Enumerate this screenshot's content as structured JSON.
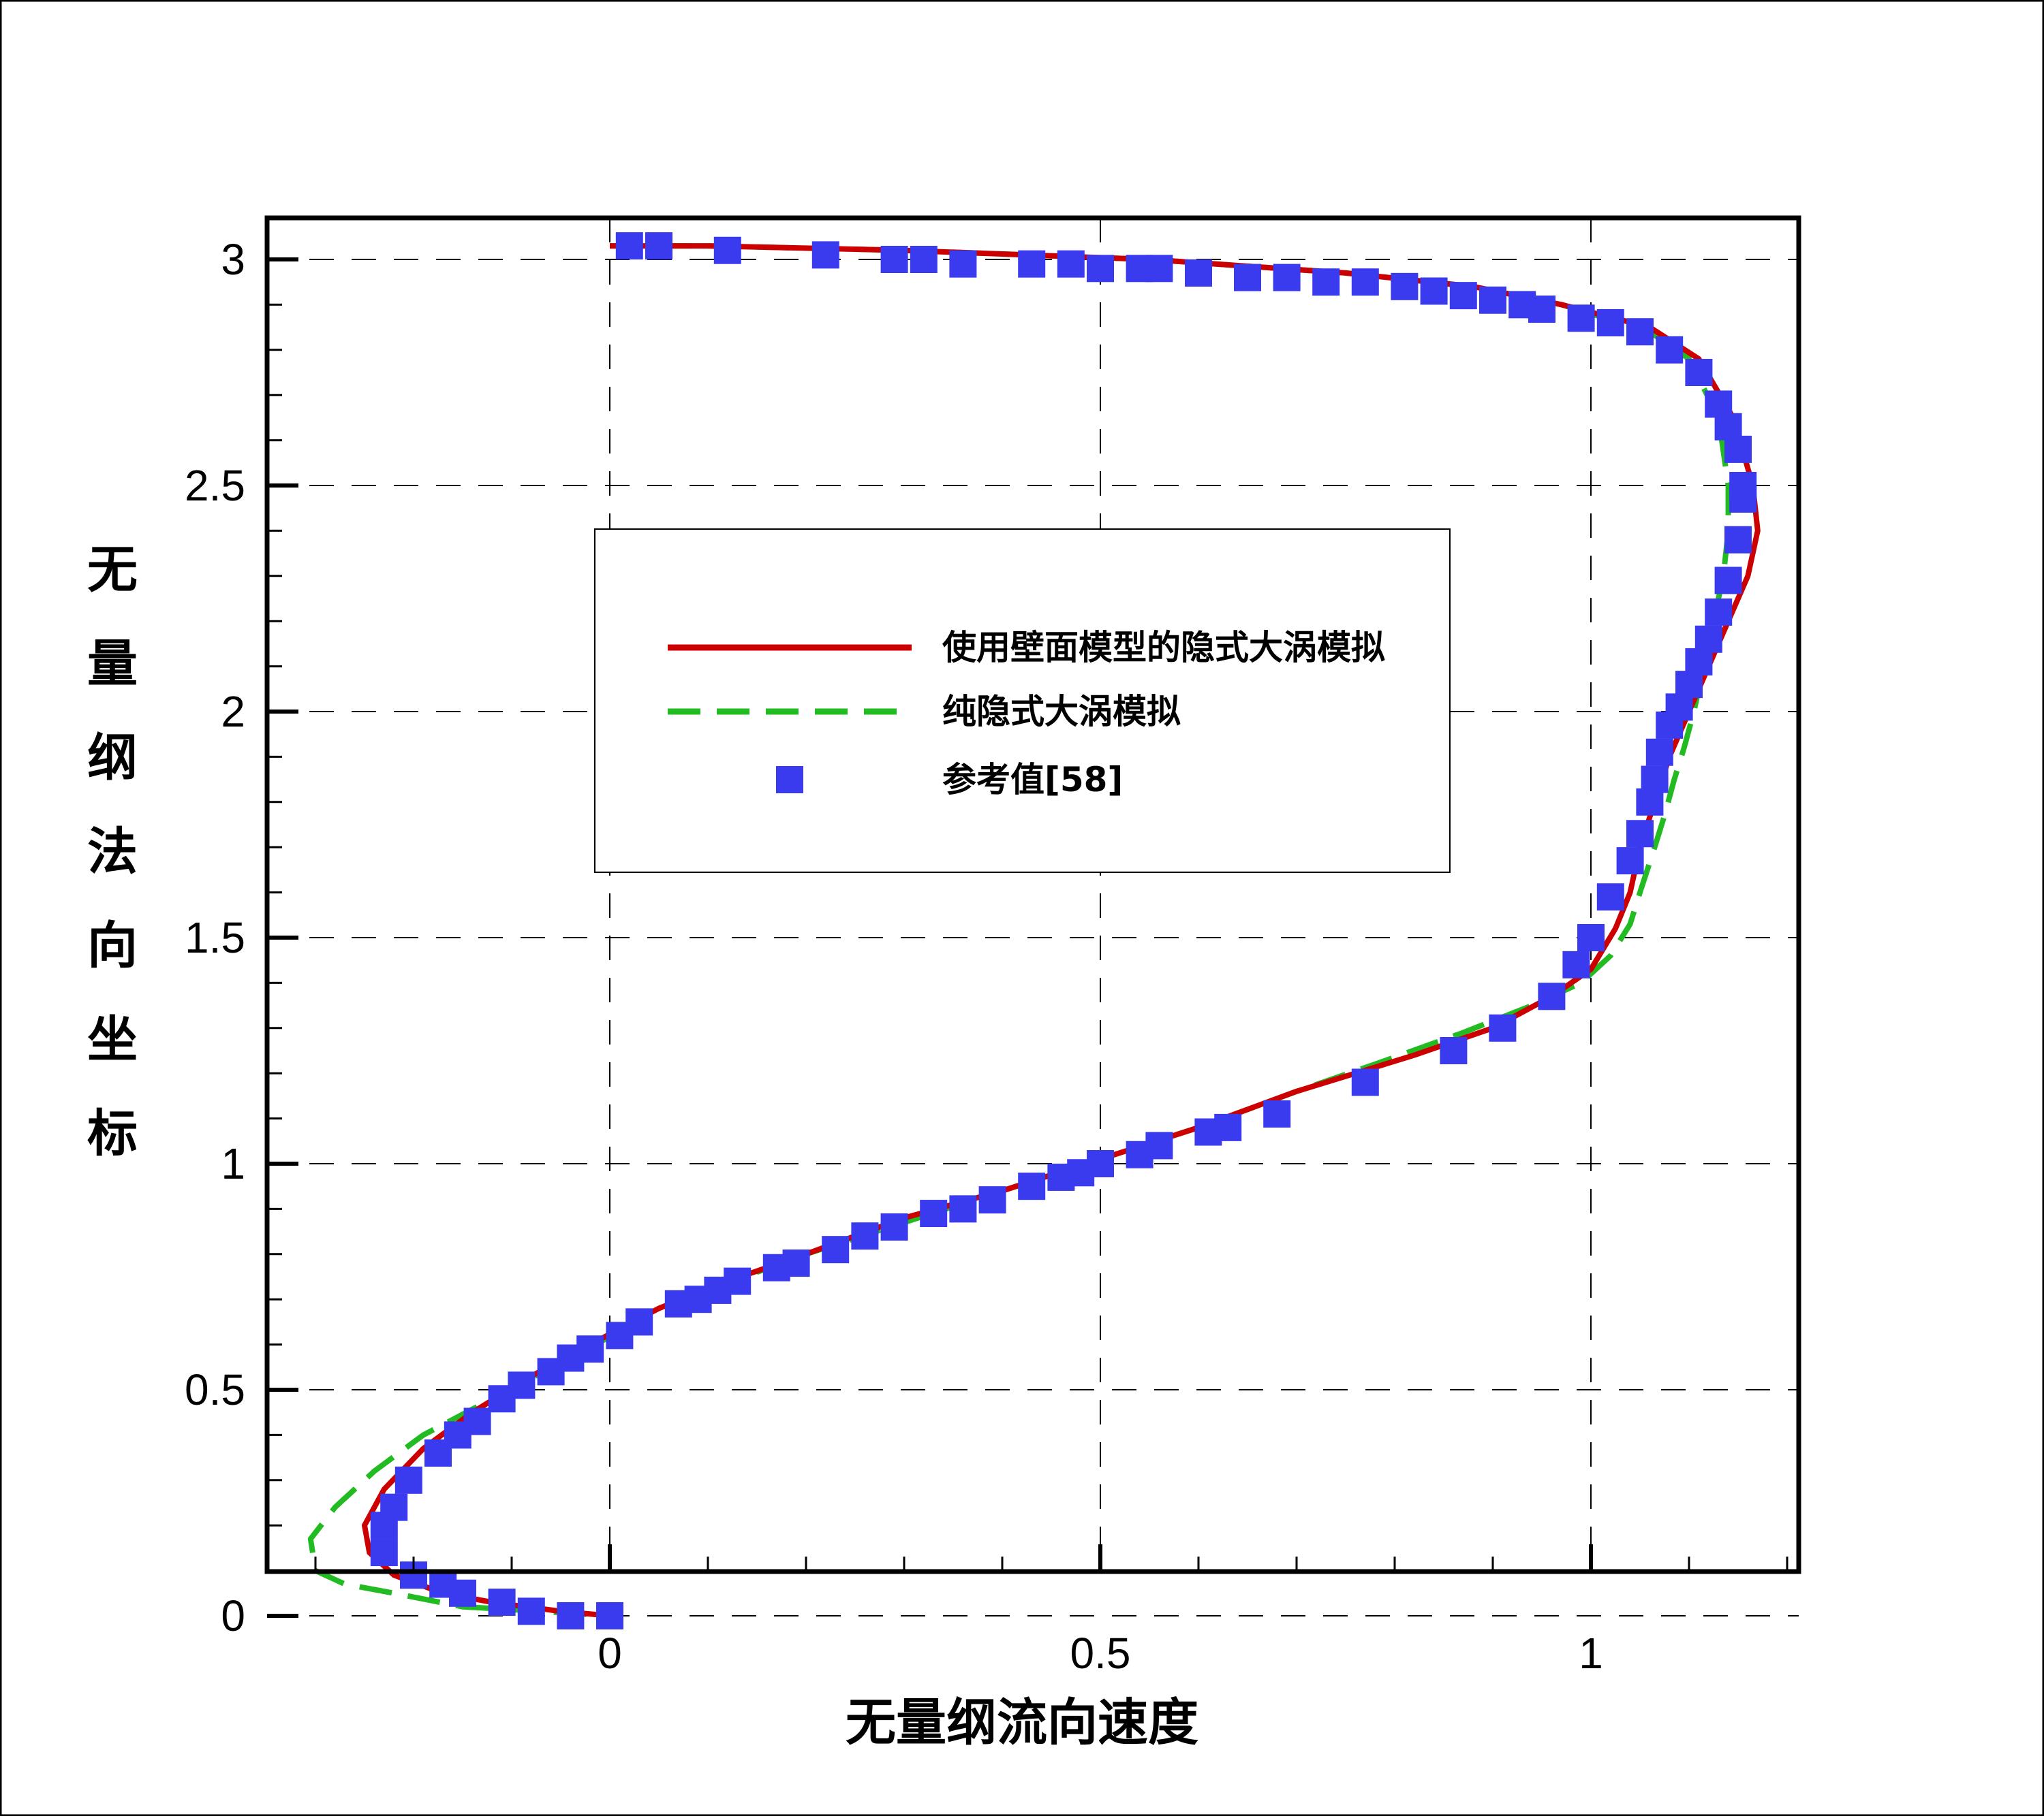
{
  "chart_data": {
    "type": "line",
    "xlabel": "无量纲流向速度",
    "ylabel": "无量纲法向坐标",
    "xlim": [
      -0.35,
      1.22
    ],
    "ylim": [
      0,
      3.1
    ],
    "x_ticks": [
      0,
      0.5,
      1
    ],
    "x_tick_labels": [
      "0",
      "0.5",
      "1"
    ],
    "y_ticks": [
      0,
      0.5,
      1,
      1.5,
      2,
      2.5,
      3
    ],
    "y_tick_labels": [
      "0",
      "0.5",
      "1",
      "1.5",
      "2",
      "2.5",
      "3"
    ],
    "grid": true,
    "legend_position": "center",
    "colors": {
      "wall_model": "#cc0000",
      "pure_iles": "#22bb22",
      "reference": "#3a3aee"
    },
    "series": [
      {
        "name": "使用壁面模型的隐式大涡模拟",
        "style": "solid",
        "points": [
          [
            0,
            3.03
          ],
          [
            0.1,
            3.03
          ],
          [
            0.3,
            3.02
          ],
          [
            0.55,
            3.0
          ],
          [
            0.75,
            2.97
          ],
          [
            0.88,
            2.94
          ],
          [
            0.97,
            2.9
          ],
          [
            1.06,
            2.85
          ],
          [
            1.11,
            2.78
          ],
          [
            1.145,
            2.65
          ],
          [
            1.165,
            2.5
          ],
          [
            1.17,
            2.4
          ],
          [
            1.16,
            2.3
          ],
          [
            1.14,
            2.2
          ],
          [
            1.12,
            2.1
          ],
          [
            1.1,
            2.0
          ],
          [
            1.08,
            1.9
          ],
          [
            1.065,
            1.8
          ],
          [
            1.05,
            1.7
          ],
          [
            1.04,
            1.6
          ],
          [
            1.025,
            1.52
          ],
          [
            1.0,
            1.43
          ],
          [
            0.96,
            1.37
          ],
          [
            0.9,
            1.3
          ],
          [
            0.82,
            1.24
          ],
          [
            0.7,
            1.16
          ],
          [
            0.6,
            1.08
          ],
          [
            0.5,
            1.01
          ],
          [
            0.4,
            0.94
          ],
          [
            0.3,
            0.88
          ],
          [
            0.2,
            0.8
          ],
          [
            0.12,
            0.74
          ],
          [
            0.05,
            0.68
          ],
          [
            -0.02,
            0.6
          ],
          [
            -0.08,
            0.53
          ],
          [
            -0.14,
            0.45
          ],
          [
            -0.19,
            0.37
          ],
          [
            -0.23,
            0.28
          ],
          [
            -0.25,
            0.2
          ],
          [
            -0.245,
            0.14
          ],
          [
            -0.22,
            0.09
          ],
          [
            -0.17,
            0.05
          ],
          [
            -0.12,
            0.03
          ],
          [
            -0.05,
            0.01
          ],
          [
            0,
            0
          ]
        ]
      },
      {
        "name": "纯隐式大涡模拟",
        "style": "dashed",
        "points": [
          [
            0,
            3.03
          ],
          [
            0.1,
            3.03
          ],
          [
            0.3,
            3.02
          ],
          [
            0.55,
            3.0
          ],
          [
            0.75,
            2.97
          ],
          [
            0.88,
            2.94
          ],
          [
            0.97,
            2.9
          ],
          [
            1.06,
            2.84
          ],
          [
            1.1,
            2.78
          ],
          [
            1.13,
            2.65
          ],
          [
            1.14,
            2.5
          ],
          [
            1.14,
            2.4
          ],
          [
            1.135,
            2.3
          ],
          [
            1.125,
            2.2
          ],
          [
            1.115,
            2.1
          ],
          [
            1.105,
            2.0
          ],
          [
            1.095,
            1.92
          ],
          [
            1.085,
            1.85
          ],
          [
            1.075,
            1.77
          ],
          [
            1.065,
            1.7
          ],
          [
            1.05,
            1.6
          ],
          [
            1.04,
            1.53
          ],
          [
            1.02,
            1.46
          ],
          [
            0.99,
            1.4
          ],
          [
            0.94,
            1.35
          ],
          [
            0.87,
            1.29
          ],
          [
            0.78,
            1.22
          ],
          [
            0.7,
            1.16
          ],
          [
            0.6,
            1.08
          ],
          [
            0.5,
            1.01
          ],
          [
            0.4,
            0.94
          ],
          [
            0.3,
            0.87
          ],
          [
            0.2,
            0.8
          ],
          [
            0.1,
            0.72
          ],
          [
            0.02,
            0.64
          ],
          [
            -0.05,
            0.56
          ],
          [
            -0.12,
            0.48
          ],
          [
            -0.19,
            0.4
          ],
          [
            -0.24,
            0.32
          ],
          [
            -0.28,
            0.24
          ],
          [
            -0.305,
            0.17
          ],
          [
            -0.3,
            0.1
          ],
          [
            -0.27,
            0.07
          ],
          [
            -0.22,
            0.05
          ],
          [
            -0.15,
            0.02
          ],
          [
            -0.07,
            0.01
          ],
          [
            0,
            0
          ]
        ]
      },
      {
        "name": "参考值[58]",
        "style": "markers",
        "points": [
          [
            0.02,
            3.03
          ],
          [
            0.05,
            3.03
          ],
          [
            0.12,
            3.02
          ],
          [
            0.22,
            3.01
          ],
          [
            0.29,
            3.0
          ],
          [
            0.32,
            3.0
          ],
          [
            0.36,
            2.99
          ],
          [
            0.43,
            2.99
          ],
          [
            0.47,
            2.99
          ],
          [
            0.5,
            2.98
          ],
          [
            0.54,
            2.98
          ],
          [
            0.56,
            2.98
          ],
          [
            0.6,
            2.97
          ],
          [
            0.65,
            2.96
          ],
          [
            0.69,
            2.96
          ],
          [
            0.73,
            2.95
          ],
          [
            0.77,
            2.95
          ],
          [
            0.81,
            2.94
          ],
          [
            0.84,
            2.93
          ],
          [
            0.87,
            2.92
          ],
          [
            0.9,
            2.91
          ],
          [
            0.93,
            2.9
          ],
          [
            0.95,
            2.89
          ],
          [
            0.99,
            2.87
          ],
          [
            1.02,
            2.86
          ],
          [
            1.05,
            2.84
          ],
          [
            1.08,
            2.8
          ],
          [
            1.11,
            2.75
          ],
          [
            1.13,
            2.68
          ],
          [
            1.14,
            2.63
          ],
          [
            1.15,
            2.58
          ],
          [
            1.155,
            2.5
          ],
          [
            1.155,
            2.47
          ],
          [
            1.15,
            2.38
          ],
          [
            1.14,
            2.29
          ],
          [
            1.13,
            2.22
          ],
          [
            1.12,
            2.16
          ],
          [
            1.11,
            2.11
          ],
          [
            1.1,
            2.06
          ],
          [
            1.09,
            2.01
          ],
          [
            1.08,
            1.97
          ],
          [
            1.07,
            1.91
          ],
          [
            1.065,
            1.85
          ],
          [
            1.06,
            1.8
          ],
          [
            1.05,
            1.73
          ],
          [
            1.04,
            1.67
          ],
          [
            1.02,
            1.59
          ],
          [
            1.0,
            1.5
          ],
          [
            0.985,
            1.44
          ],
          [
            0.96,
            1.37
          ],
          [
            0.91,
            1.3
          ],
          [
            0.86,
            1.25
          ],
          [
            0.77,
            1.18
          ],
          [
            0.68,
            1.11
          ],
          [
            0.63,
            1.08
          ],
          [
            0.61,
            1.07
          ],
          [
            0.56,
            1.04
          ],
          [
            0.54,
            1.02
          ],
          [
            0.5,
            1.0
          ],
          [
            0.48,
            0.98
          ],
          [
            0.46,
            0.97
          ],
          [
            0.43,
            0.95
          ],
          [
            0.39,
            0.92
          ],
          [
            0.36,
            0.9
          ],
          [
            0.33,
            0.89
          ],
          [
            0.29,
            0.86
          ],
          [
            0.26,
            0.84
          ],
          [
            0.23,
            0.81
          ],
          [
            0.19,
            0.78
          ],
          [
            0.17,
            0.77
          ],
          [
            0.13,
            0.74
          ],
          [
            0.11,
            0.72
          ],
          [
            0.09,
            0.7
          ],
          [
            0.07,
            0.69
          ],
          [
            0.03,
            0.65
          ],
          [
            0.01,
            0.62
          ],
          [
            -0.02,
            0.59
          ],
          [
            -0.04,
            0.57
          ],
          [
            -0.06,
            0.54
          ],
          [
            -0.09,
            0.51
          ],
          [
            -0.11,
            0.48
          ],
          [
            -0.135,
            0.43
          ],
          [
            -0.155,
            0.4
          ],
          [
            -0.175,
            0.36
          ],
          [
            -0.205,
            0.3
          ],
          [
            -0.22,
            0.24
          ],
          [
            -0.23,
            0.2
          ],
          [
            -0.23,
            0.14
          ],
          [
            -0.2,
            0.09
          ],
          [
            -0.17,
            0.07
          ],
          [
            -0.15,
            0.05
          ],
          [
            -0.11,
            0.03
          ],
          [
            -0.08,
            0.01
          ],
          [
            -0.04,
            0.0
          ],
          [
            0.0,
            0.0
          ]
        ]
      }
    ]
  }
}
